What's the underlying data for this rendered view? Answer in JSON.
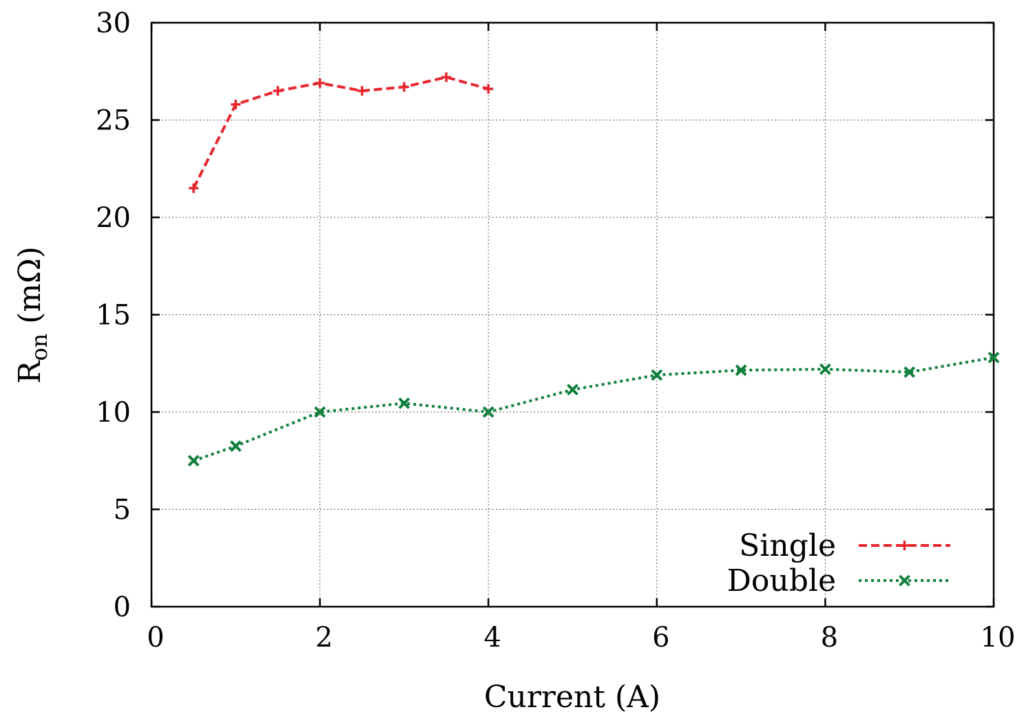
{
  "chart_data": {
    "type": "line",
    "xlabel": "Current (A)",
    "ylabel": {
      "main": "R",
      "sub": "on",
      "unit": " (mΩ)"
    },
    "xlim": [
      0,
      10
    ],
    "ylim": [
      0,
      30
    ],
    "xticks": [
      0,
      2,
      4,
      6,
      8,
      10
    ],
    "yticks": [
      0,
      5,
      10,
      15,
      20,
      25,
      30
    ],
    "grid": true,
    "legend_position": "bottom-right",
    "series": [
      {
        "name": "Single",
        "color": "#e8262d",
        "line_style": "dashed",
        "marker": "plus",
        "x": [
          0.5,
          1.0,
          1.5,
          2.0,
          2.5,
          3.0,
          3.5,
          4.0
        ],
        "y": [
          21.5,
          25.8,
          26.5,
          26.9,
          26.5,
          26.7,
          27.2,
          26.6
        ]
      },
      {
        "name": "Double",
        "color": "#0f7f3c",
        "line_style": "dotted",
        "marker": "cross",
        "x": [
          0.5,
          1.0,
          2.0,
          3.0,
          4.0,
          5.0,
          6.0,
          7.0,
          8.0,
          9.0,
          10.0
        ],
        "y": [
          7.5,
          8.25,
          10.0,
          10.45,
          10.0,
          11.15,
          11.9,
          12.15,
          12.2,
          12.05,
          12.8
        ]
      }
    ]
  }
}
